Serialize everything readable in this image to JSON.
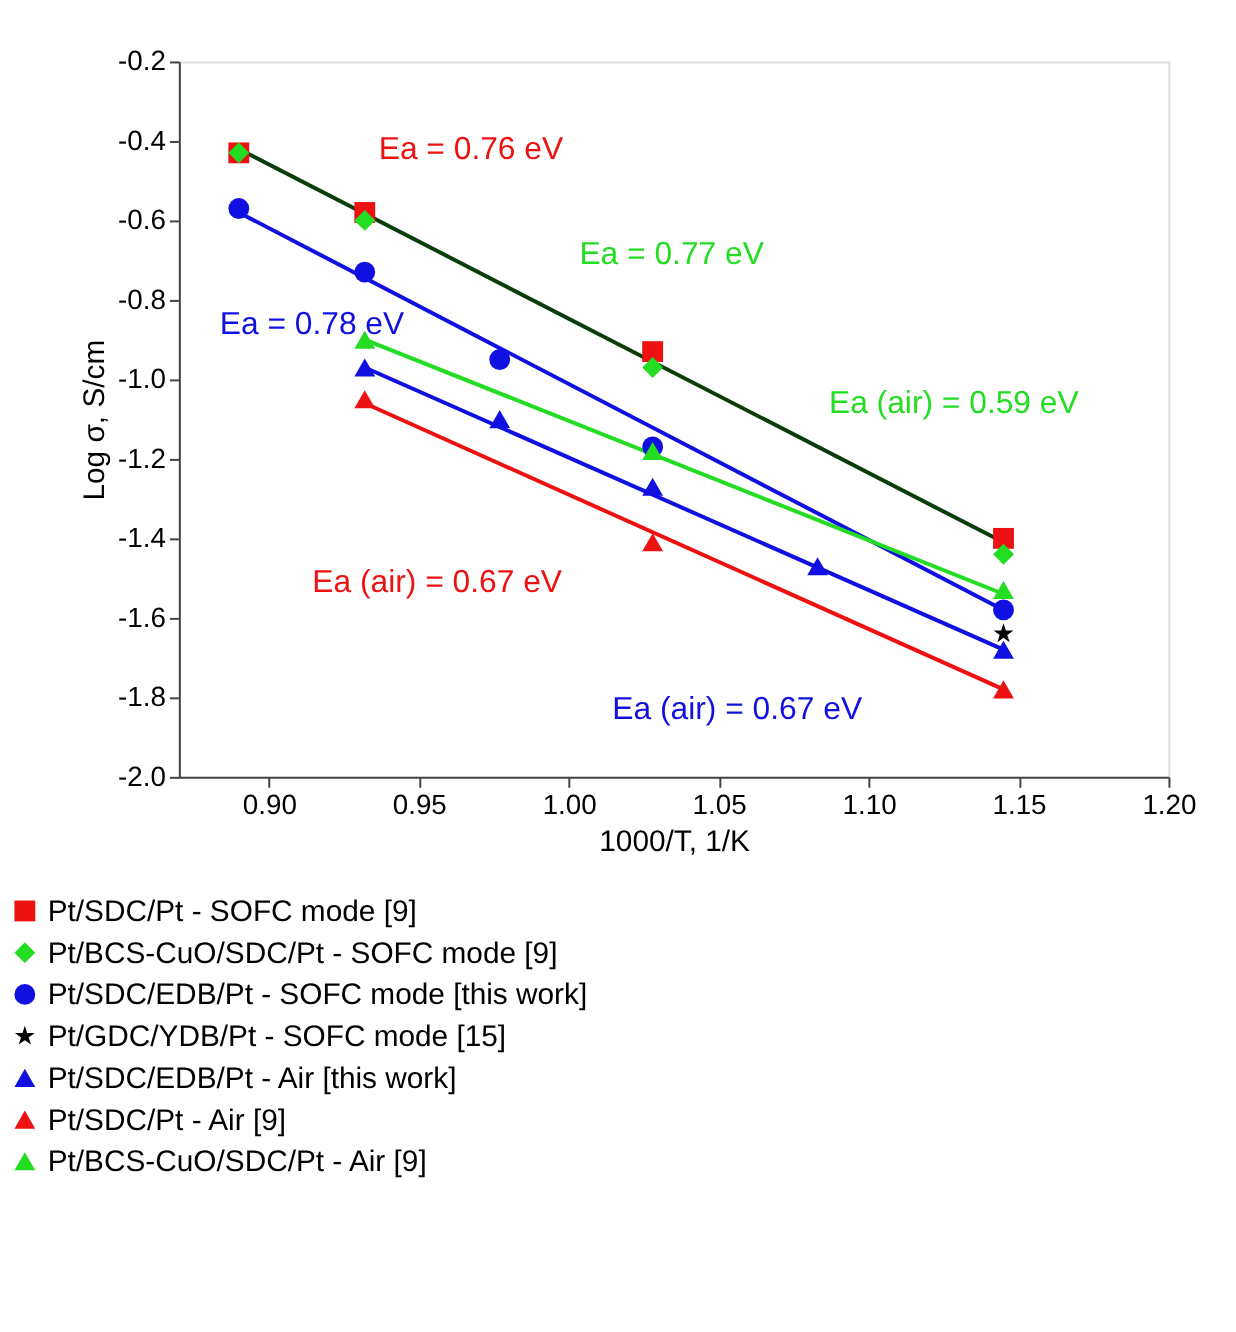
{
  "chart_data": {
    "type": "scatter",
    "xlabel": "1000/T, 1/K",
    "ylabel": "Log σ, S/cm",
    "xlim": [
      0.87,
      1.2
    ],
    "xticks": [
      {
        "value": 0.9,
        "label": "0.90"
      },
      {
        "value": 0.95,
        "label": "0.95"
      },
      {
        "value": 1.0,
        "label": "1.00"
      },
      {
        "value": 1.05,
        "label": "1.05"
      },
      {
        "value": 1.1,
        "label": "1.10"
      },
      {
        "value": 1.15,
        "label": "1.15"
      },
      {
        "value": 1.2,
        "label": "1.20"
      }
    ],
    "ylim": [
      -2.0,
      -0.2
    ],
    "yticks": [
      {
        "value": -2.0,
        "label": "-2.0"
      },
      {
        "value": -1.8,
        "label": "-1.8"
      },
      {
        "value": -1.6,
        "label": "-1.6"
      },
      {
        "value": -1.4,
        "label": "-1.4"
      },
      {
        "value": -1.2,
        "label": "-1.2"
      },
      {
        "value": -1.0,
        "label": "-1.0"
      },
      {
        "value": -0.8,
        "label": "-0.8"
      },
      {
        "value": -0.6,
        "label": "-0.6"
      },
      {
        "value": -0.4,
        "label": "-0.4"
      },
      {
        "value": -0.2,
        "label": "-0.2"
      }
    ],
    "grid": false,
    "legend": "bottom",
    "series": [
      {
        "type": "line",
        "color": "#0b3d0b",
        "marker": "none",
        "line_style": "solid",
        "x": [
          0.89,
          1.145
        ],
        "values": [
          -0.42,
          -1.41
        ]
      },
      {
        "type": "line",
        "color": "#1010e0",
        "marker": "none",
        "line_style": "solid",
        "x": [
          0.89,
          1.145
        ],
        "values": [
          -0.58,
          -1.58
        ]
      },
      {
        "type": "line",
        "color": "#22dd22",
        "marker": "none",
        "line_style": "solid",
        "x": [
          0.932,
          1.145
        ],
        "values": [
          -0.9,
          -1.54
        ]
      },
      {
        "type": "line",
        "color": "#1010e0",
        "marker": "none",
        "line_style": "solid",
        "x": [
          0.932,
          1.145
        ],
        "values": [
          -0.97,
          -1.68
        ]
      },
      {
        "type": "line",
        "color": "#ee1111",
        "marker": "none",
        "line_style": "solid",
        "x": [
          0.932,
          1.145
        ],
        "values": [
          -1.06,
          -1.78
        ]
      },
      {
        "name": "Pt/SDC/Pt - SOFC mode [9]",
        "color": "#ee1111",
        "marker": "square",
        "x": [
          0.89,
          0.932,
          1.028,
          1.145
        ],
        "values": [
          -0.43,
          -0.58,
          -0.93,
          -1.4
        ]
      },
      {
        "name": "Pt/BCS-CuO/SDC/Pt - SOFC mode [9]",
        "color": "#22dd22",
        "marker": "diamond",
        "x": [
          0.89,
          0.932,
          1.028,
          1.145
        ],
        "values": [
          -0.43,
          -0.6,
          -0.97,
          -1.44
        ]
      },
      {
        "name": "Pt/SDC/EDB/Pt - SOFC mode [this work]",
        "color": "#1010e0",
        "marker": "circle",
        "x": [
          0.89,
          0.932,
          0.977,
          1.028,
          1.145
        ],
        "values": [
          -0.57,
          -0.73,
          -0.95,
          -1.17,
          -1.58
        ]
      },
      {
        "name": "Pt/GDC/YDB/Pt - SOFC mode [15]",
        "color": "#000000",
        "marker": "star",
        "x": [
          1.145
        ],
        "values": [
          -1.64
        ]
      },
      {
        "name": "Pt/SDC/EDB/Pt - Air [this work]",
        "color": "#1010e0",
        "marker": "triangle",
        "x": [
          0.932,
          0.977,
          1.028,
          1.083,
          1.145
        ],
        "values": [
          -0.97,
          -1.1,
          -1.27,
          -1.47,
          -1.68
        ]
      },
      {
        "name": "Pt/SDC/Pt - Air [9]",
        "color": "#ee1111",
        "marker": "triangle",
        "x": [
          0.932,
          1.028,
          1.145
        ],
        "values": [
          -1.05,
          -1.41,
          -1.78
        ]
      },
      {
        "name": "Pt/BCS-CuO/SDC/Pt - Air [9]",
        "color": "#22dd22",
        "marker": "triangle",
        "x": [
          0.932,
          1.028,
          1.145
        ],
        "values": [
          -0.9,
          -1.18,
          -1.53
        ]
      }
    ],
    "annotations": [
      "Ea = 0.76 eV",
      "Ea = 0.77 eV",
      "Ea = 0.78 eV",
      "Ea (air) = 0.59 eV",
      "Ea (air) = 0.67 eV",
      "Ea (air) = 0.67 eV"
    ]
  }
}
